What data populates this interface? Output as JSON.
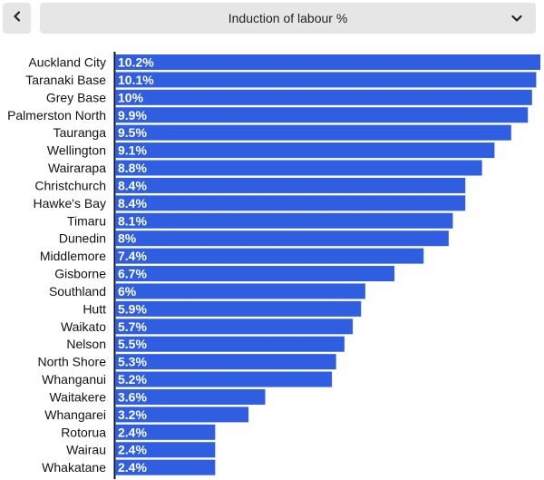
{
  "header": {
    "back_icon": "chevron-left-icon",
    "selected_metric": "Induction of labour %",
    "dropdown_icon": "chevron-down-icon"
  },
  "colors": {
    "bar": "#2f5ee0",
    "axis": "#111111",
    "label": "#111111",
    "value_label": "#ffffff"
  },
  "chart_data": {
    "type": "bar",
    "orientation": "horizontal",
    "categories": [
      "Auckland City",
      "Taranaki Base",
      "Grey Base",
      "Palmerston North",
      "Tauranga",
      "Wellington",
      "Wairarapa",
      "Christchurch",
      "Hawke's Bay",
      "Timaru",
      "Dunedin",
      "Middlemore",
      "Gisborne",
      "Southland",
      "Hutt",
      "Waikato",
      "Nelson",
      "North Shore",
      "Whanganui",
      "Waitakere",
      "Whangarei",
      "Rotorua",
      "Wairau",
      "Whakatane"
    ],
    "values": [
      10.2,
      10.1,
      10,
      9.9,
      9.5,
      9.1,
      8.8,
      8.4,
      8.4,
      8.1,
      8,
      7.4,
      6.7,
      6,
      5.9,
      5.7,
      5.5,
      5.3,
      5.2,
      3.6,
      3.2,
      2.4,
      2.4,
      2.4
    ],
    "value_labels": [
      "10.2%",
      "10.1%",
      "10%",
      "9.9%",
      "9.5%",
      "9.1%",
      "8.8%",
      "8.4%",
      "8.4%",
      "8.1%",
      "8%",
      "7.4%",
      "6.7%",
      "6%",
      "5.9%",
      "5.7%",
      "5.5%",
      "5.3%",
      "5.2%",
      "3.6%",
      "3.2%",
      "2.4%",
      "2.4%",
      "2.4%"
    ],
    "title": "",
    "xlabel": "",
    "ylabel": "",
    "xlim": [
      0,
      10.2
    ],
    "grid": false,
    "legend": "none"
  }
}
